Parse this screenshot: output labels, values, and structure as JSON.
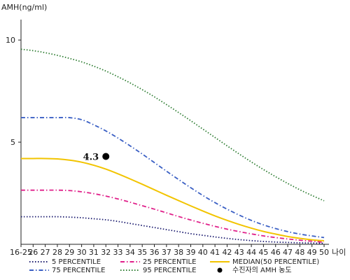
{
  "chart_data": {
    "type": "line",
    "ylabel": "AMH(ng/ml)",
    "xlabel": "나이",
    "categories": [
      "16-25",
      "26",
      "27",
      "28",
      "29",
      "30",
      "31",
      "32",
      "33",
      "34",
      "35",
      "36",
      "37",
      "38",
      "39",
      "40",
      "41",
      "42",
      "43",
      "44",
      "45",
      "46",
      "47",
      "48",
      "49",
      "50"
    ],
    "ylim": [
      0,
      11
    ],
    "yticks": [
      "5",
      "10"
    ],
    "grid": false,
    "legend_position": "bottom",
    "series": [
      {
        "name": "5 PERCENTILE",
        "color": "#1a1a6e",
        "style": "dotted",
        "values": [
          1.35,
          1.35,
          1.35,
          1.35,
          1.33,
          1.3,
          1.25,
          1.2,
          1.12,
          1.02,
          0.92,
          0.82,
          0.72,
          0.62,
          0.52,
          0.44,
          0.36,
          0.29,
          0.23,
          0.18,
          0.14,
          0.11,
          0.09,
          0.07,
          0.06,
          0.05
        ]
      },
      {
        "name": "75 PERCENTILE",
        "color": "#3a5fc4",
        "style": "dashdot",
        "values": [
          6.2,
          6.2,
          6.2,
          6.2,
          6.2,
          6.1,
          5.85,
          5.55,
          5.2,
          4.82,
          4.42,
          4.0,
          3.58,
          3.17,
          2.77,
          2.39,
          2.04,
          1.72,
          1.43,
          1.17,
          0.95,
          0.77,
          0.62,
          0.5,
          0.41,
          0.33
        ]
      },
      {
        "name": "25 PERCENTILE",
        "color": "#e0208a",
        "style": "dashdot",
        "values": [
          2.65,
          2.65,
          2.65,
          2.65,
          2.63,
          2.57,
          2.48,
          2.36,
          2.22,
          2.06,
          1.89,
          1.72,
          1.54,
          1.36,
          1.19,
          1.03,
          0.88,
          0.74,
          0.62,
          0.51,
          0.41,
          0.33,
          0.26,
          0.2,
          0.15,
          0.1
        ]
      },
      {
        "name": "95 PERCENTILE",
        "color": "#2e7d32",
        "style": "dotted",
        "values": [
          9.55,
          9.48,
          9.38,
          9.25,
          9.1,
          8.93,
          8.72,
          8.48,
          8.2,
          7.9,
          7.57,
          7.22,
          6.84,
          6.45,
          6.05,
          5.64,
          5.23,
          4.82,
          4.42,
          4.03,
          3.66,
          3.31,
          2.98,
          2.67,
          2.39,
          2.13
        ]
      },
      {
        "name": "MEDIAN(50 PERCENTILE)",
        "color": "#f2c400",
        "style": "solid",
        "values": [
          4.2,
          4.2,
          4.2,
          4.18,
          4.12,
          4.02,
          3.87,
          3.68,
          3.45,
          3.2,
          2.94,
          2.67,
          2.4,
          2.14,
          1.88,
          1.63,
          1.39,
          1.17,
          0.97,
          0.79,
          0.63,
          0.5,
          0.38,
          0.29,
          0.22,
          0.17
        ]
      }
    ],
    "points": [
      {
        "name": "수진자의 AMH 농도",
        "x": "32",
        "y": 4.3,
        "label": "4.3",
        "color": "#000000"
      }
    ]
  },
  "legend": [
    {
      "label": "5 PERCENTILE",
      "color": "#1a1a6e",
      "style": "dotted"
    },
    {
      "label": "25 PERCENTILE",
      "color": "#e0208a",
      "style": "dashdot"
    },
    {
      "label": "MEDIAN(50 PERCENTILE)",
      "color": "#f2c400",
      "style": "solid"
    },
    {
      "label": "75 PERCENTILE",
      "color": "#3a5fc4",
      "style": "dashdot"
    },
    {
      "label": "95 PERCENTILE",
      "color": "#2e7d32",
      "style": "dotted"
    },
    {
      "label": "수진자의 AMH 농도",
      "color": "#000000",
      "style": "dot"
    }
  ]
}
